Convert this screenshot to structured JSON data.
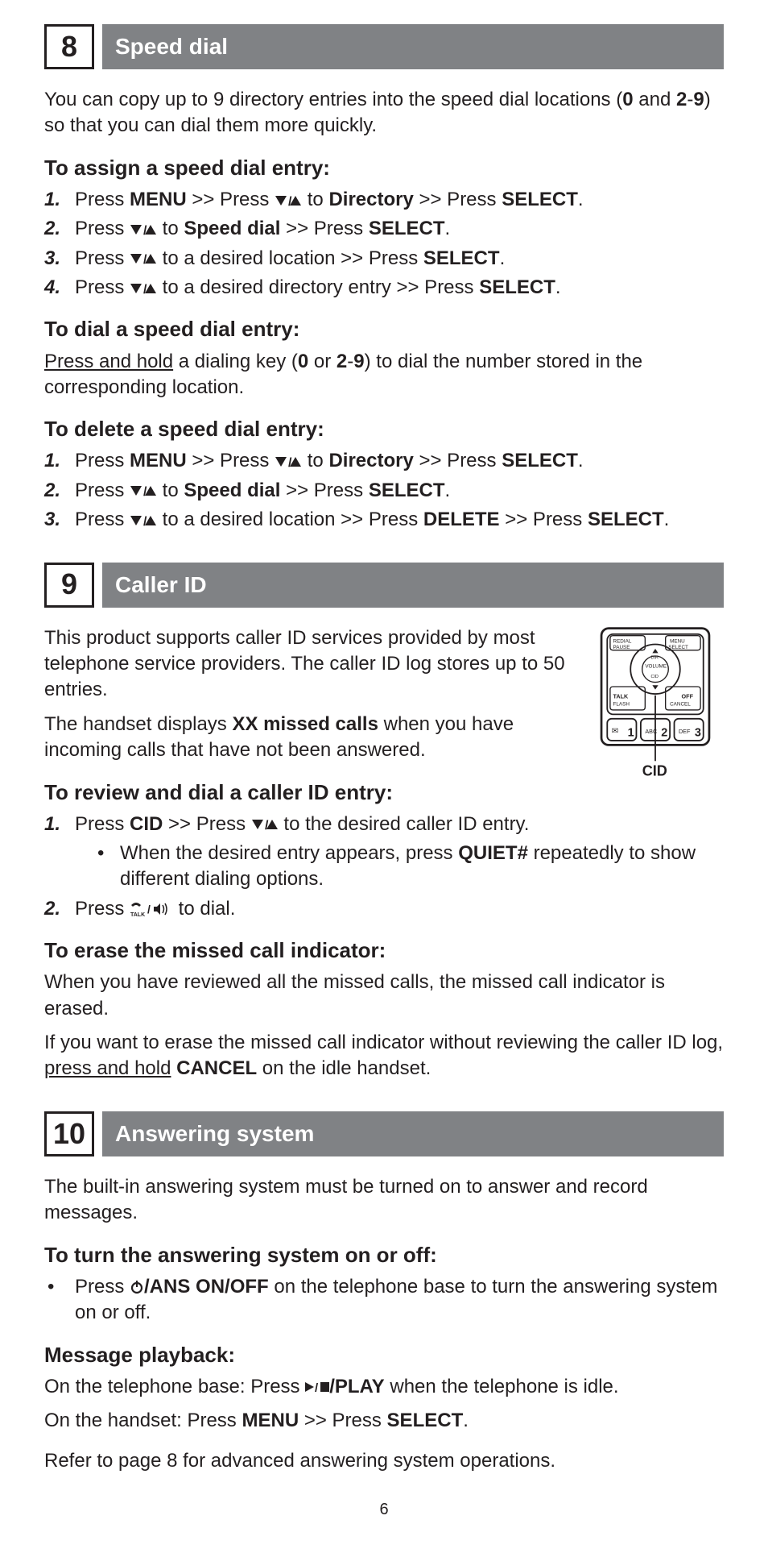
{
  "page_number": "6",
  "icons": {
    "down_up": "▼/▲",
    "play_stop": "▶/■",
    "power": "⏻"
  },
  "sections": [
    {
      "number": "8",
      "title": "Speed dial",
      "intro_html": "You can copy up to 9 directory entries into the speed dial locations (<span class=\"b\">0</span> and <span class=\"b\">2</span>-<span class=\"b\">9</span>) so that you can dial them more quickly.",
      "blocks": [
        {
          "type": "subhead",
          "text": "To assign a speed dial entry:"
        },
        {
          "type": "ol",
          "items": [
            "Press <span class=\"b\">MENU</span> &gt;&gt; Press {DU} to <span class=\"b\">Directory</span> &gt;&gt; Press <span class=\"b\">SELECT</span>.",
            "Press {DU} to <span class=\"b\">Speed dial</span> &gt;&gt; Press <span class=\"b\">SELECT</span>.",
            "Press {DU} to a desired location &gt;&gt; Press <span class=\"b\">SELECT</span>.",
            "Press {DU} to a desired directory entry &gt;&gt; Press <span class=\"b\">SELECT</span>."
          ]
        },
        {
          "type": "subhead",
          "text": "To dial a speed dial entry:"
        },
        {
          "type": "para",
          "html": "<span class=\"u\">Press and hold</span> a dialing key (<span class=\"b\">0</span> or <span class=\"b\">2</span>-<span class=\"b\">9</span>) to dial the number stored in the corresponding location."
        },
        {
          "type": "subhead",
          "text": "To delete a speed dial entry:"
        },
        {
          "type": "ol",
          "items": [
            "Press <span class=\"b\">MENU</span> &gt;&gt; Press {DU} to <span class=\"b\">Directory</span> &gt;&gt; Press <span class=\"b\">SELECT</span>.",
            "Press {DU} to <span class=\"b\">Speed dial</span> &gt;&gt; Press <span class=\"b\">SELECT</span>.",
            "Press {DU} to a desired location &gt;&gt; Press <span class=\"b\">DELETE</span> &gt;&gt; Press <span class=\"b\">SELECT</span>."
          ]
        }
      ]
    },
    {
      "number": "9",
      "title": "Caller ID",
      "figure_caption": "CID",
      "intro_paras": [
        "This product supports caller ID services provided by most telephone service providers. The caller ID log stores up to 50 entries.",
        "The handset displays <span class=\"b\">XX missed calls</span> when you have incoming calls that have not been answered."
      ],
      "blocks": [
        {
          "type": "subhead",
          "text": "To review and dial a caller ID entry:"
        },
        {
          "type": "ol",
          "items_complex": [
            {
              "main": "Press <span class=\"b\">CID</span> &gt;&gt; Press {DU} to the desired caller ID entry.",
              "sub": "When the desired entry appears, press <span class=\"b\">QUIET#</span> repeatedly to show different dialing options."
            },
            {
              "main": "Press {TALK} to dial."
            }
          ]
        },
        {
          "type": "subhead",
          "text": "To erase the missed call indicator:"
        },
        {
          "type": "para",
          "html": "When you have reviewed all the missed calls, the missed call indicator is erased."
        },
        {
          "type": "para",
          "html": "If you want to erase the missed call indicator without reviewing the caller ID log, <span class=\"u\">press and hold</span> <span class=\"b\">CANCEL</span> on the idle handset."
        }
      ]
    },
    {
      "number": "10",
      "title": "Answering system",
      "intro_paras": [
        "The built-in answering system must be turned on to answer and record messages."
      ],
      "blocks": [
        {
          "type": "subhead",
          "text": "To turn the answering system on or off:"
        },
        {
          "type": "ul",
          "items": [
            "Press {PWR}<span class=\"b\">/ANS ON/OFF</span> on the telephone base to turn the answering system on or off."
          ]
        },
        {
          "type": "subhead",
          "text": "Message playback:"
        },
        {
          "type": "para",
          "html": "On the telephone base: Press {PS}<span class=\"b\">/PLAY</span> when the telephone is idle."
        },
        {
          "type": "para",
          "html": "On the handset: Press <span class=\"b\">MENU</span> &gt;&gt; Press <span class=\"b\">SELECT</span>."
        },
        {
          "type": "para_gap",
          "html": "Refer to page 8 for advanced answering system operations."
        }
      ]
    }
  ]
}
